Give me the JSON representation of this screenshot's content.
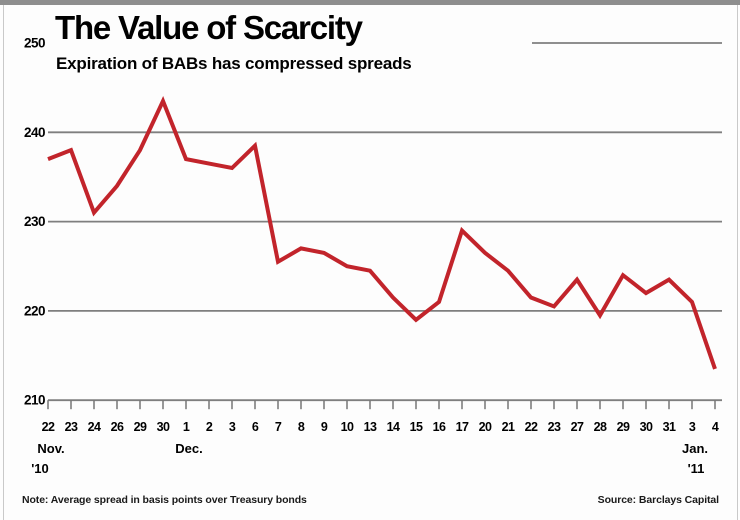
{
  "header": {
    "title": "The Value of Scarcity",
    "subtitle": "Expiration of BABs has compressed spreads"
  },
  "footer": {
    "note": "Note: Average spread in basis points over Treasury bonds",
    "source": "Source: Barclays Capital"
  },
  "colors": {
    "line": "#c2242b",
    "grid": "#7f7f7f",
    "tick": "#777777",
    "top_bar": "#8e8e8e",
    "border": "#c9c9c9",
    "text": "#000000"
  },
  "chart_data": {
    "type": "line",
    "title": "The Value of Scarcity",
    "subtitle": "Expiration of BABs has compressed spreads",
    "unit": "basis points over Treasury bonds",
    "categories": [
      "Nov 22",
      "Nov 23",
      "Nov 24",
      "Nov 26",
      "Nov 29",
      "Nov 30",
      "Dec 1",
      "Dec 2",
      "Dec 3",
      "Dec 6",
      "Dec 7",
      "Dec 8",
      "Dec 9",
      "Dec 10",
      "Dec 13",
      "Dec 14",
      "Dec 15",
      "Dec 16",
      "Dec 17",
      "Dec 20",
      "Dec 21",
      "Dec 22",
      "Dec 23",
      "Dec 27",
      "Dec 28",
      "Dec 29",
      "Dec 30",
      "Dec 31",
      "Jan 3",
      "Jan 4"
    ],
    "x_tick_labels": [
      "22",
      "23",
      "24",
      "26",
      "29",
      "30",
      "1",
      "2",
      "3",
      "6",
      "7",
      "8",
      "9",
      "10",
      "13",
      "14",
      "15",
      "16",
      "17",
      "20",
      "21",
      "22",
      "23",
      "27",
      "28",
      "29",
      "30",
      "31",
      "3",
      "4"
    ],
    "x_groups": [
      {
        "label": "Nov.",
        "year": "'10",
        "index": 0
      },
      {
        "label": "Dec.",
        "year": "",
        "index": 6
      },
      {
        "label": "Jan.",
        "year": "'11",
        "index": 28
      }
    ],
    "values": [
      237,
      238,
      231,
      234,
      238,
      243.5,
      237,
      236.5,
      236,
      238.5,
      225.5,
      227,
      226.5,
      225,
      224.5,
      221.5,
      219,
      221,
      229,
      226.5,
      224.5,
      221.5,
      220.5,
      223.5,
      219.5,
      224,
      222,
      223.5,
      221,
      213.5
    ],
    "ylim": [
      210,
      250
    ],
    "y_ticks": [
      250,
      240,
      230,
      220,
      210
    ],
    "grid": "horizontal",
    "legend": "none"
  }
}
